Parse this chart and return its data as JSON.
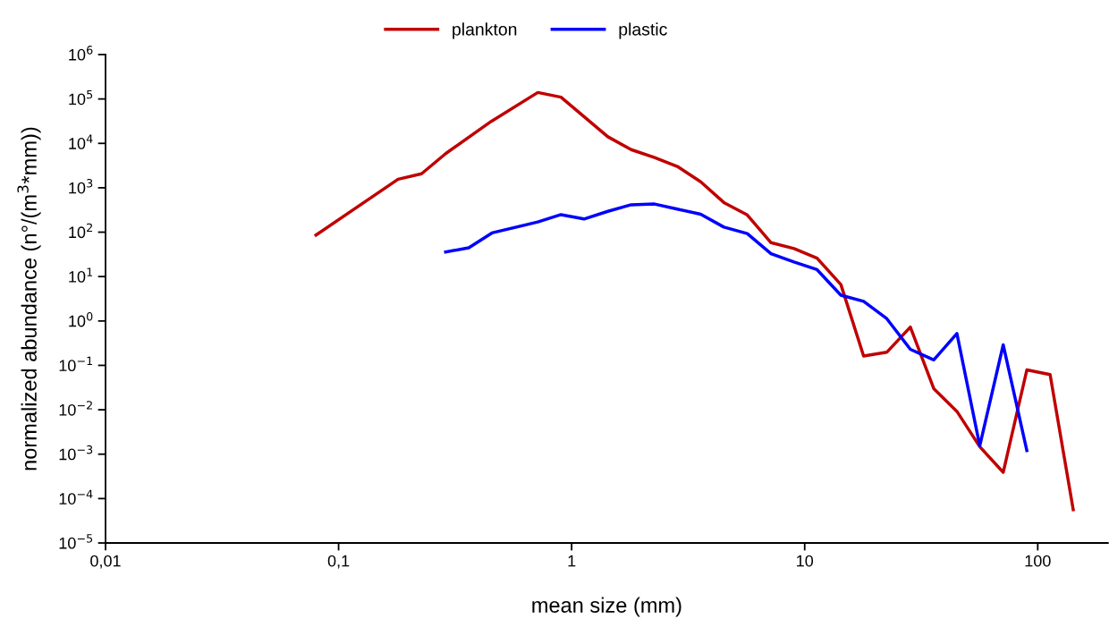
{
  "chart_data": {
    "type": "line",
    "xlabel": "mean size (mm)",
    "ylabel": "normalized abundance (n°/(m$^{3}$*mm))",
    "log": "xy",
    "grid": false,
    "legend": "top",
    "marker": "none",
    "line_style": "solid",
    "xlim": [
      0.01,
      200
    ],
    "xticks": [
      {
        "value": 0.01,
        "label": "0,01"
      },
      {
        "value": 0.1,
        "label": "0,1"
      },
      1,
      10,
      100
    ],
    "ylim": [
      1e-05,
      1000000
    ],
    "yticks": [
      {
        "value": 1e-05,
        "label": "10$^{−5}$"
      },
      {
        "value": 0.0001,
        "label": "10$^{−4}$"
      },
      {
        "value": 0.001,
        "label": "10$^{−3}$"
      },
      {
        "value": 0.01,
        "label": "10$^{−2}$"
      },
      {
        "value": 0.1,
        "label": "10$^{−1}$"
      },
      {
        "value": 1,
        "label": "10$^{0}$"
      },
      {
        "value": 10,
        "label": "10$^{1}$"
      },
      {
        "value": 100,
        "label": "10$^{2}$"
      },
      {
        "value": 1000,
        "label": "10$^{3}$"
      },
      {
        "value": 10000,
        "label": "10$^{4}$"
      },
      {
        "value": 100000,
        "label": "10$^{5}$"
      },
      {
        "value": 1000000,
        "label": "10$^{6}$"
      }
    ],
    "series": [
      {
        "name": "plankton",
        "color": "#c00000",
        "x": [
          0.08,
          0.18,
          0.227,
          0.288,
          0.452,
          0.716,
          0.9,
          1.13,
          1.43,
          1.8,
          2.27,
          2.84,
          3.58,
          4.5,
          5.67,
          7.17,
          9.0,
          11.3,
          14.3,
          17.9,
          22.5,
          28.4,
          35.8,
          45,
          56.4,
          71.1,
          89.8,
          113,
          142
        ],
        "values": [
          86,
          1560,
          2070,
          5880,
          31300,
          140000,
          110000,
          40000,
          14100,
          7240,
          4770,
          3030,
          1360,
          465,
          244,
          58,
          42.6,
          26,
          6.6,
          0.163,
          0.197,
          0.73,
          0.03,
          0.0092,
          0.00147,
          0.00039,
          0.079,
          0.062,
          5.6e-05
        ]
      },
      {
        "name": "plastic",
        "color": "#0000ff",
        "x": [
          0.288,
          0.362,
          0.455,
          0.716,
          0.9,
          1.13,
          1.43,
          1.8,
          2.27,
          2.84,
          3.58,
          4.5,
          5.67,
          7.17,
          9.0,
          11.3,
          14.3,
          17.9,
          22.5,
          28.4,
          35.8,
          45,
          56.4,
          71.1,
          89.8
        ],
        "values": [
          35.7,
          44.5,
          96,
          170,
          248,
          198,
          295,
          414,
          430,
          330,
          253,
          130,
          93,
          32.7,
          21.3,
          14.3,
          3.8,
          2.76,
          1.13,
          0.23,
          0.133,
          0.52,
          0.00155,
          0.29,
          0.00121
        ]
      }
    ]
  }
}
